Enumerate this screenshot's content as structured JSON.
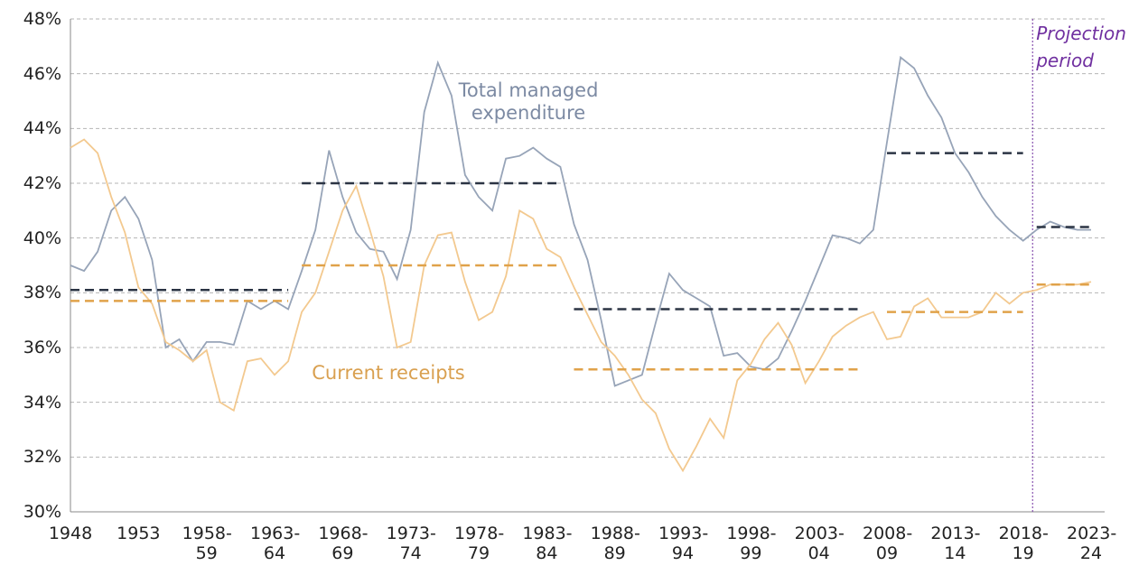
{
  "chart_data": {
    "type": "line",
    "categories": [
      "1948",
      null,
      null,
      null,
      null,
      "1953",
      null,
      null,
      null,
      null,
      "1958-59",
      null,
      null,
      null,
      null,
      "1963-64",
      null,
      null,
      null,
      null,
      "1968-69",
      null,
      null,
      null,
      null,
      "1973-74",
      null,
      null,
      null,
      null,
      "1978-79",
      null,
      null,
      null,
      null,
      "1983-84",
      null,
      null,
      null,
      null,
      "1988-89",
      null,
      null,
      null,
      null,
      "1993-94",
      null,
      null,
      null,
      null,
      "1998-99",
      null,
      null,
      null,
      null,
      "2003-04",
      null,
      null,
      null,
      null,
      "2008-09",
      null,
      null,
      null,
      null,
      "2013-14",
      null,
      null,
      null,
      null,
      "2018-19",
      null,
      null,
      null,
      null,
      "2023-24"
    ],
    "series": [
      {
        "name": "Total managed expenditure",
        "color": "#97a4b8",
        "average_color": "#2b3444",
        "values": [
          39.0,
          38.8,
          39.5,
          41.0,
          41.5,
          40.7,
          39.2,
          36.0,
          36.3,
          35.5,
          36.2,
          36.2,
          36.1,
          37.7,
          37.4,
          37.7,
          37.4,
          38.8,
          40.3,
          43.2,
          41.5,
          40.2,
          39.6,
          39.5,
          38.5,
          40.3,
          44.6,
          46.4,
          45.2,
          42.3,
          41.5,
          41.0,
          42.9,
          43.0,
          43.3,
          42.9,
          42.6,
          40.5,
          39.2,
          37.0,
          34.6,
          34.8,
          35.0,
          36.9,
          38.7,
          38.1,
          37.8,
          37.5,
          35.7,
          35.8,
          35.3,
          35.2,
          35.6,
          36.6,
          37.7,
          38.9,
          40.1,
          40.0,
          39.8,
          40.3,
          43.5,
          46.6,
          46.2,
          45.2,
          44.4,
          43.1,
          42.4,
          41.5,
          40.8,
          40.3,
          39.9,
          40.3,
          40.6,
          40.4,
          40.3,
          40.3
        ],
        "averages": [
          {
            "start": 0,
            "end": 16,
            "value": 38.1
          },
          {
            "start": 17,
            "end": 36,
            "value": 42.0
          },
          {
            "start": 37,
            "end": 58,
            "value": 37.4
          },
          {
            "start": 60,
            "end": 70,
            "value": 43.1
          },
          {
            "start": 71,
            "end": 75,
            "value": 40.4
          }
        ]
      },
      {
        "name": "Current receipts",
        "color": "#f3c98f",
        "average_color": "#e0a24a",
        "values": [
          43.3,
          43.6,
          43.1,
          41.5,
          40.2,
          38.2,
          37.6,
          36.2,
          35.9,
          35.5,
          35.9,
          34.0,
          33.7,
          35.5,
          35.6,
          35.0,
          35.5,
          37.3,
          38.0,
          39.5,
          41.0,
          41.9,
          40.3,
          38.6,
          36.0,
          36.2,
          39.0,
          40.1,
          40.2,
          38.4,
          37.0,
          37.3,
          38.6,
          41.0,
          40.7,
          39.6,
          39.3,
          38.2,
          37.2,
          36.2,
          35.7,
          35.0,
          34.1,
          33.6,
          32.3,
          31.5,
          32.4,
          33.4,
          32.7,
          34.8,
          35.4,
          36.3,
          36.9,
          36.1,
          34.7,
          35.5,
          36.4,
          36.8,
          37.1,
          37.3,
          36.3,
          36.4,
          37.5,
          37.8,
          37.1,
          37.1,
          37.1,
          37.3,
          38.0,
          37.6,
          38.0,
          38.1,
          38.3,
          38.3,
          38.3,
          38.4
        ],
        "averages": [
          {
            "start": 0,
            "end": 16,
            "value": 37.7
          },
          {
            "start": 17,
            "end": 36,
            "value": 39.0
          },
          {
            "start": 37,
            "end": 58,
            "value": 35.2
          },
          {
            "start": 60,
            "end": 70,
            "value": 37.3
          },
          {
            "start": 71,
            "end": 75,
            "value": 38.3
          }
        ]
      }
    ],
    "ylim": [
      30,
      48
    ],
    "yticks": [
      {
        "value": 30,
        "label": "30%"
      },
      {
        "value": 32,
        "label": "32%"
      },
      {
        "value": 34,
        "label": "34%"
      },
      {
        "value": 36,
        "label": "36%"
      },
      {
        "value": 38,
        "label": "38%"
      },
      {
        "value": 40,
        "label": "40%"
      },
      {
        "value": 42,
        "label": "42%"
      },
      {
        "value": 44,
        "label": "44%"
      },
      {
        "value": 46,
        "label": "46%"
      },
      {
        "value": 48,
        "label": "48%"
      }
    ],
    "grid": true,
    "projection": {
      "label": "Projection period",
      "x": 70.7,
      "color": "#7030a0"
    }
  }
}
